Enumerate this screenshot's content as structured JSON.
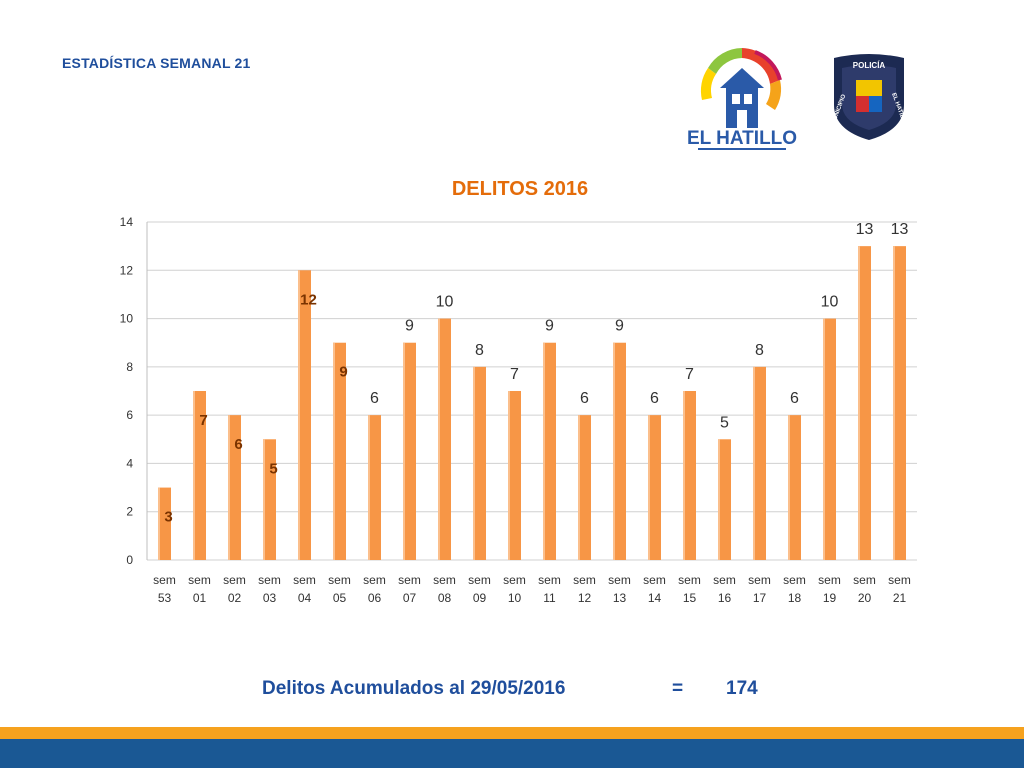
{
  "header": {
    "title": "ESTADÍSTICA SEMANAL 21"
  },
  "logos": {
    "municipality": {
      "text": "EL HATILLO",
      "icon": "el-hatillo-logo"
    },
    "police": {
      "text_top": "POLICÍA",
      "text_left": "MUNICIPIO",
      "text_right": "EL HATILLO",
      "icon": "police-shield-logo"
    }
  },
  "colors": {
    "bar": "#f79646",
    "title": "#e46c0a",
    "header_text": "#1f4e9c",
    "footer_orange": "#f6a21e",
    "footer_blue": "#1a5894"
  },
  "chart_data": {
    "type": "bar",
    "title": "DELITOS 2016",
    "categories": [
      "sem 53",
      "sem 01",
      "sem 02",
      "sem 03",
      "sem 04",
      "sem 05",
      "sem 06",
      "sem 07",
      "sem 08",
      "sem 09",
      "sem 10",
      "sem 11",
      "sem 12",
      "sem 13",
      "sem 14",
      "sem 15",
      "sem 16",
      "sem 17",
      "sem 18",
      "sem 19",
      "sem 20",
      "sem 21"
    ],
    "values": [
      3,
      7,
      6,
      5,
      12,
      9,
      6,
      9,
      10,
      8,
      7,
      9,
      6,
      9,
      6,
      7,
      5,
      8,
      6,
      10,
      13,
      13
    ],
    "bold_labels_count": 6,
    "ylim": [
      0,
      14
    ],
    "yticks": [
      0,
      2,
      4,
      6,
      8,
      10,
      12,
      14
    ],
    "grid": true,
    "legend": "none",
    "xlabel": "",
    "ylabel": ""
  },
  "summary": {
    "label": "Delitos Acumulados al  29/05/2016",
    "equals": "=",
    "total": "174"
  }
}
